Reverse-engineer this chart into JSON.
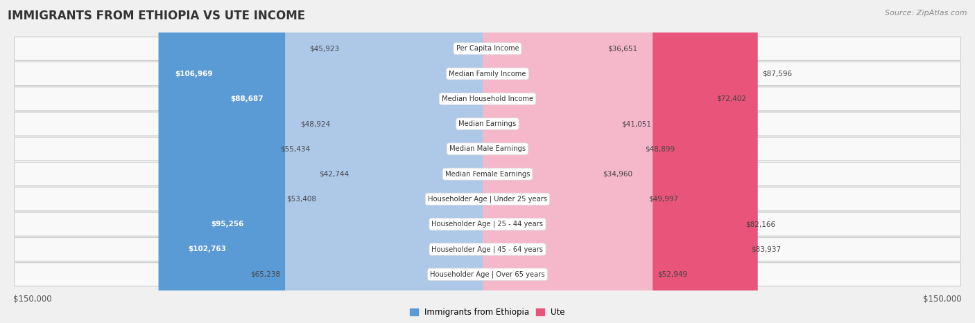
{
  "title": "IMMIGRANTS FROM ETHIOPIA VS UTE INCOME",
  "source": "Source: ZipAtlas.com",
  "categories": [
    "Per Capita Income",
    "Median Family Income",
    "Median Household Income",
    "Median Earnings",
    "Median Male Earnings",
    "Median Female Earnings",
    "Householder Age | Under 25 years",
    "Householder Age | 25 - 44 years",
    "Householder Age | 45 - 64 years",
    "Householder Age | Over 65 years"
  ],
  "ethiopia_values": [
    45923,
    106969,
    88687,
    48924,
    55434,
    42744,
    53408,
    95256,
    102763,
    65238
  ],
  "ute_values": [
    36651,
    87596,
    72402,
    41051,
    48899,
    34960,
    49997,
    82166,
    83937,
    52949
  ],
  "ethiopia_labels": [
    "$45,923",
    "$106,969",
    "$88,687",
    "$48,924",
    "$55,434",
    "$42,744",
    "$53,408",
    "$95,256",
    "$102,763",
    "$65,238"
  ],
  "ute_labels": [
    "$36,651",
    "$87,596",
    "$72,402",
    "$41,051",
    "$48,899",
    "$34,960",
    "$49,997",
    "$82,166",
    "$83,937",
    "$52,949"
  ],
  "ethiopia_label_inside": [
    false,
    true,
    true,
    false,
    false,
    false,
    false,
    true,
    true,
    false
  ],
  "max_value": 150000,
  "ethiopia_color_light": "#aec9e8",
  "ethiopia_color_dark": "#5b9bd5",
  "ute_color_light": "#f5b8cb",
  "ute_color_dark": "#e8547a",
  "background_color": "#f0f0f0",
  "row_bg_even": "#f7f7f7",
  "row_bg_odd": "#ffffff",
  "legend_ethiopia": "Immigrants from Ethiopia",
  "legend_ute": "Ute",
  "bar_height": 0.52
}
